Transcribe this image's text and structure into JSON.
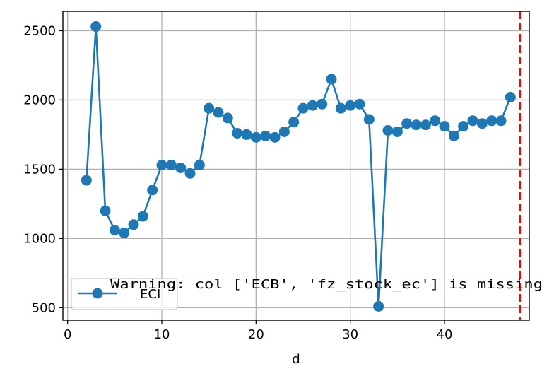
{
  "chart_data": {
    "type": "line",
    "xlabel": "d",
    "ylabel": "",
    "xlim": [
      -0.5,
      49.0
    ],
    "ylim": [
      410,
      2640
    ],
    "xticks": [
      0,
      10,
      20,
      30,
      40
    ],
    "yticks": [
      500,
      1000,
      1500,
      2000,
      2500
    ],
    "grid": true,
    "legend_placement": "lower-left",
    "series": [
      {
        "name": "ECI",
        "color": "#1f77b4",
        "marker": "circle",
        "x": [
          2,
          3,
          4,
          5,
          6,
          7,
          8,
          9,
          10,
          11,
          12,
          13,
          14,
          15,
          16,
          17,
          18,
          19,
          20,
          21,
          22,
          23,
          24,
          25,
          26,
          27,
          28,
          29,
          30,
          31,
          32,
          33,
          34,
          35,
          36,
          37,
          38,
          39,
          40,
          41,
          42,
          43,
          44,
          45,
          46,
          47
        ],
        "values": [
          1420,
          2530,
          1200,
          1060,
          1040,
          1100,
          1160,
          1350,
          1530,
          1530,
          1510,
          1470,
          1530,
          1940,
          1910,
          1870,
          1760,
          1750,
          1730,
          1740,
          1730,
          1770,
          1840,
          1940,
          1960,
          1970,
          2150,
          1940,
          1960,
          1970,
          1860,
          510,
          1780,
          1770,
          1830,
          1820,
          1820,
          1850,
          1810,
          1740,
          1810,
          1850,
          1830,
          1850,
          1850,
          2020
        ]
      }
    ],
    "vline": {
      "x": 48,
      "color": "#ff0000",
      "style": "dashed"
    },
    "annotation": "Warning: col ['ECB', 'fz_stock_ec'] is missing"
  }
}
